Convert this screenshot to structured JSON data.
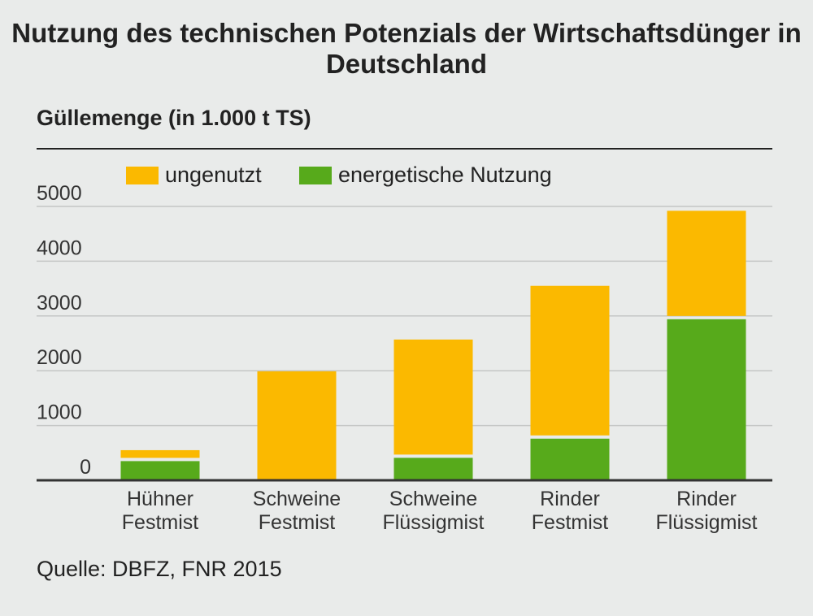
{
  "chart_data": {
    "type": "bar",
    "stacked": true,
    "title": "Nutzung des technischen Potenzials der Wirtschaftsdünger in Deutschland",
    "ylabel": "Güllemenge (in 1.000 t TS)",
    "ylim": [
      0,
      5000
    ],
    "yticks": [
      0,
      1000,
      2000,
      3000,
      4000,
      5000
    ],
    "grid": true,
    "legend_position": "top",
    "categories": [
      "Hühner\nFestmist",
      "Schweine\nFestmist",
      "Schweine\nFlüssigmist",
      "Rinder\nFestmist",
      "Rinder\nFlüssigmist"
    ],
    "series": [
      {
        "name": "energetische Nutzung",
        "color": "#57aa1b",
        "values": [
          350,
          0,
          410,
          760,
          2940
        ]
      },
      {
        "name": "ungenutzt",
        "color": "#fbb900",
        "values": [
          200,
          1990,
          2160,
          2790,
          1980
        ]
      }
    ],
    "legend_order": [
      "ungenutzt",
      "energetische Nutzung"
    ],
    "source": "Quelle: DBFZ, FNR 2015"
  }
}
